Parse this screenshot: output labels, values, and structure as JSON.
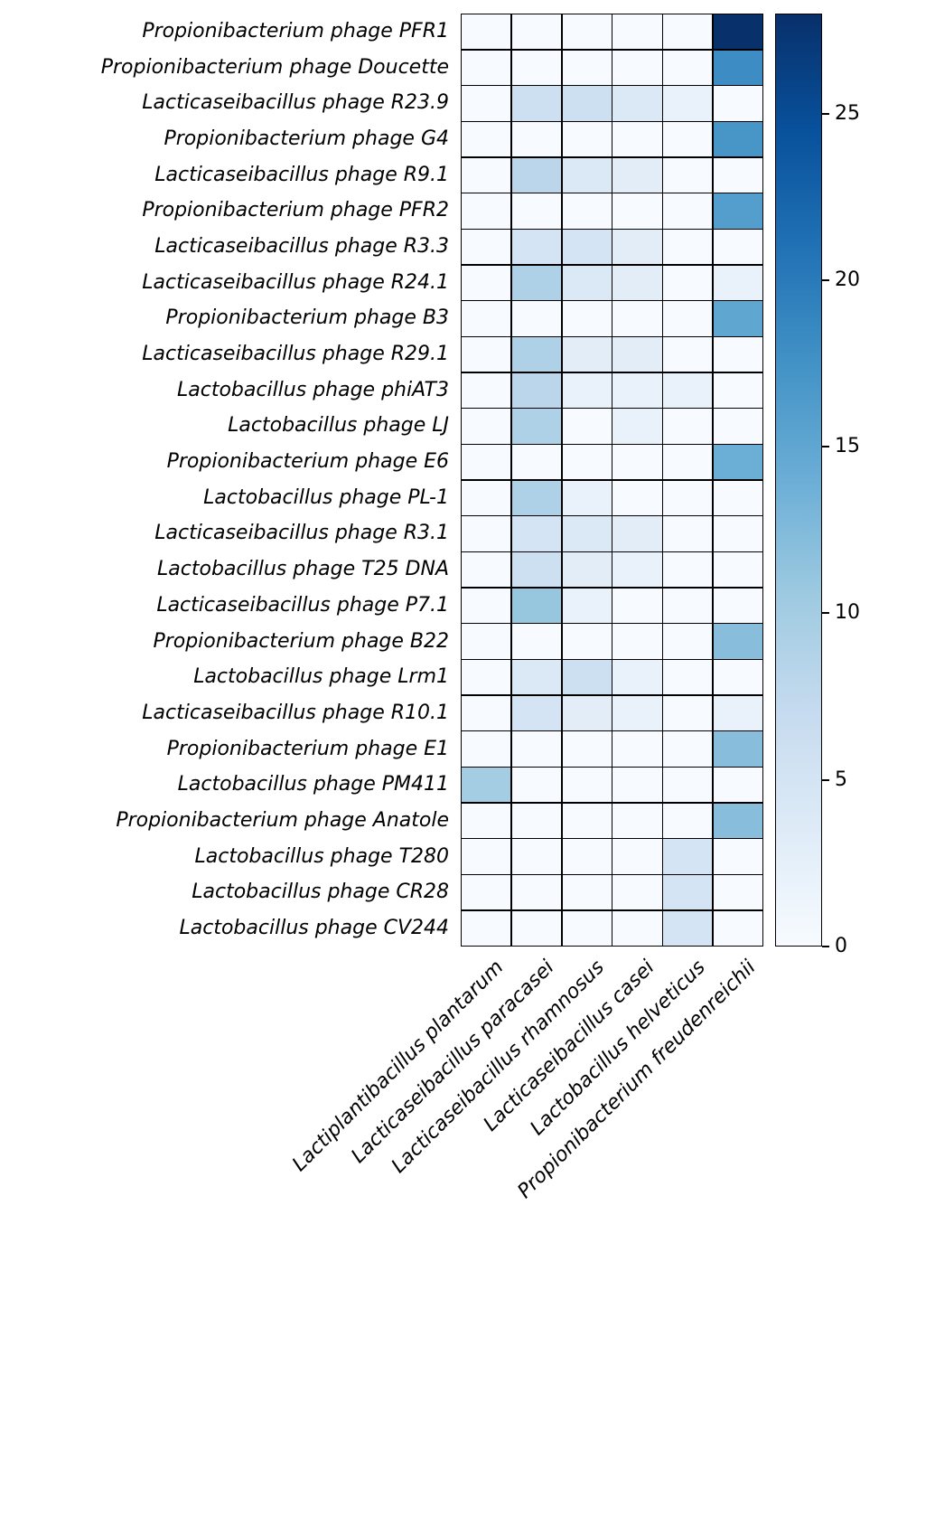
{
  "chart_data": {
    "type": "heatmap",
    "title": "",
    "xlabel": "",
    "ylabel": "",
    "grid": "black cell borders",
    "legend_position": "right colorbar",
    "columns": [
      "Lactiplantibacillus plantarum",
      "Lacticaseibacillus paracasei",
      "Lacticaseibacillus rhamnosus",
      "Lacticaseibacillus casei",
      "Lactobacillus helveticus",
      "Propionibacterium freudenreichii"
    ],
    "rows": [
      {
        "label": "Propionibacterium phage PFR1",
        "values": [
          0,
          0,
          0,
          0,
          0,
          28
        ]
      },
      {
        "label": "Propionibacterium phage Doucette",
        "values": [
          0,
          0,
          0,
          0,
          0,
          18
        ]
      },
      {
        "label": "Lacticaseibacillus phage R23.9",
        "values": [
          0,
          6,
          6,
          4,
          2,
          0
        ]
      },
      {
        "label": "Propionibacterium phage G4",
        "values": [
          0,
          0,
          0,
          0,
          0,
          17
        ]
      },
      {
        "label": "Lacticaseibacillus phage R9.1",
        "values": [
          0,
          8,
          4,
          3,
          0,
          0
        ]
      },
      {
        "label": "Propionibacterium phage PFR2",
        "values": [
          0,
          0,
          0,
          0,
          0,
          16
        ]
      },
      {
        "label": "Lacticaseibacillus phage R3.3",
        "values": [
          0,
          5,
          5,
          3,
          0,
          0
        ]
      },
      {
        "label": "Lacticaseibacillus phage R24.1",
        "values": [
          0,
          9,
          4,
          3,
          0,
          2
        ]
      },
      {
        "label": "Propionibacterium phage B3",
        "values": [
          0,
          0,
          0,
          0,
          0,
          15
        ]
      },
      {
        "label": "Lacticaseibacillus phage R29.1",
        "values": [
          0,
          9,
          3,
          3,
          0,
          0
        ]
      },
      {
        "label": "Lactobacillus phage phiAT3",
        "values": [
          0,
          8,
          2,
          2,
          2,
          0
        ]
      },
      {
        "label": "Lactobacillus phage LJ",
        "values": [
          0,
          9,
          0,
          2,
          0,
          0
        ]
      },
      {
        "label": "Propionibacterium phage E6",
        "values": [
          0,
          0,
          0,
          0,
          0,
          14
        ]
      },
      {
        "label": "Lactobacillus phage PL-1",
        "values": [
          0,
          9,
          2,
          0,
          0,
          0
        ]
      },
      {
        "label": "Lacticaseibacillus phage R3.1",
        "values": [
          0,
          5,
          4,
          3,
          0,
          0
        ]
      },
      {
        "label": "Lactobacillus phage T25 DNA",
        "values": [
          0,
          6,
          3,
          2,
          0,
          0
        ]
      },
      {
        "label": "Lacticaseibacillus phage P7.1",
        "values": [
          0,
          11,
          2,
          0,
          0,
          0
        ]
      },
      {
        "label": "Propionibacterium phage B22",
        "values": [
          0,
          0,
          0,
          0,
          0,
          12
        ]
      },
      {
        "label": "Lactobacillus phage Lrm1",
        "values": [
          0,
          4,
          6,
          2,
          0,
          0
        ]
      },
      {
        "label": "Lacticaseibacillus phage R10.1",
        "values": [
          0,
          5,
          3,
          2,
          0,
          2
        ]
      },
      {
        "label": "Propionibacterium phage E1",
        "values": [
          0,
          0,
          0,
          0,
          0,
          12
        ]
      },
      {
        "label": "Lactobacillus phage PM411",
        "values": [
          10,
          0,
          0,
          0,
          0,
          0
        ]
      },
      {
        "label": "Propionibacterium phage Anatole",
        "values": [
          0,
          0,
          0,
          0,
          0,
          12
        ]
      },
      {
        "label": "Lactobacillus phage T280",
        "values": [
          0,
          0,
          0,
          0,
          5,
          0
        ]
      },
      {
        "label": "Lactobacillus phage CR28",
        "values": [
          0,
          0,
          0,
          0,
          5,
          0
        ]
      },
      {
        "label": "Lactobacillus phage CV244",
        "values": [
          0,
          0,
          0,
          0,
          5,
          0
        ]
      }
    ],
    "colorbar": {
      "vmin": 0,
      "vmax": 28,
      "ticks": [
        0,
        5,
        10,
        15,
        20,
        25
      ],
      "colormap": "Blues",
      "stops": [
        "#f7fbff",
        "#deebf7",
        "#c6dbef",
        "#9ecae1",
        "#6baed6",
        "#4292c6",
        "#2171b5",
        "#08519c",
        "#08306b"
      ]
    }
  }
}
